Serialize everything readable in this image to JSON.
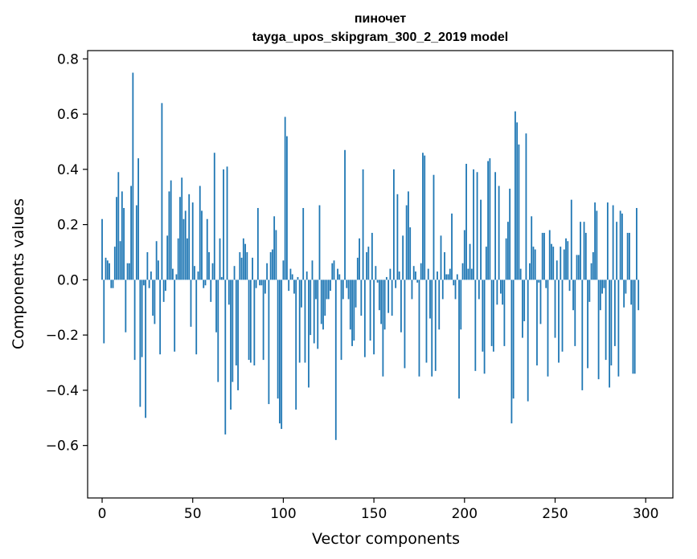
{
  "chart_data": {
    "type": "bar",
    "title_line1": "пиночет",
    "title_line2": "tayga_upos_skipgram_300_2_2019 model",
    "xlabel": "Vector components",
    "ylabel": "Components values",
    "xlim": [
      -8,
      315
    ],
    "ylim": [
      -0.79,
      0.83
    ],
    "xticks": [
      0,
      50,
      100,
      150,
      200,
      250,
      300
    ],
    "yticks": [
      -0.6,
      -0.4,
      -0.2,
      0.0,
      0.2,
      0.4,
      0.6,
      0.8
    ],
    "ytick_labels": [
      "−0.6",
      "−0.4",
      "−0.2",
      "0.0",
      "0.2",
      "0.4",
      "0.6",
      "0.8"
    ],
    "bar_color": "#1f77b4",
    "values": [
      0.22,
      -0.23,
      0.08,
      0.07,
      0.06,
      -0.03,
      -0.03,
      0.12,
      0.3,
      0.39,
      0.14,
      0.32,
      0.26,
      -0.19,
      0.06,
      0.06,
      0.34,
      0.75,
      -0.29,
      0.27,
      0.44,
      -0.46,
      -0.28,
      -0.02,
      -0.5,
      0.1,
      -0.03,
      0.03,
      -0.13,
      -0.16,
      0.14,
      0.07,
      -0.27,
      0.64,
      -0.08,
      -0.04,
      0.16,
      0.32,
      0.36,
      0.04,
      -0.26,
      0.02,
      0.15,
      0.3,
      0.37,
      0.22,
      0.25,
      0.15,
      0.31,
      -0.17,
      0.28,
      0.05,
      -0.27,
      0.03,
      0.34,
      0.25,
      -0.03,
      -0.02,
      0.22,
      0.1,
      -0.08,
      0.06,
      0.46,
      -0.19,
      -0.37,
      0.15,
      0.01,
      0.4,
      -0.56,
      0.41,
      -0.09,
      -0.47,
      -0.37,
      0.05,
      -0.31,
      -0.4,
      0.1,
      0.08,
      0.15,
      0.13,
      0.1,
      -0.29,
      -0.3,
      0.08,
      -0.31,
      -0.03,
      0.26,
      -0.02,
      -0.02,
      -0.29,
      -0.05,
      0.06,
      -0.45,
      0.1,
      0.11,
      0.23,
      0.18,
      -0.43,
      -0.52,
      -0.54,
      0.07,
      0.59,
      0.52,
      -0.04,
      0.04,
      0.02,
      -0.05,
      -0.47,
      0.01,
      -0.3,
      -0.1,
      0.26,
      -0.3,
      0.03,
      -0.39,
      -0.2,
      0.07,
      -0.23,
      -0.07,
      -0.25,
      0.27,
      -0.16,
      -0.18,
      -0.13,
      -0.07,
      -0.07,
      -0.04,
      0.06,
      0.07,
      -0.58,
      0.04,
      0.02,
      -0.29,
      -0.07,
      0.47,
      -0.03,
      -0.07,
      -0.18,
      -0.24,
      -0.22,
      -0.1,
      0.08,
      0.15,
      -0.13,
      0.4,
      -0.28,
      0.1,
      0.12,
      -0.22,
      0.17,
      -0.27,
      0.05,
      -0.01,
      -0.11,
      -0.16,
      -0.35,
      -0.18,
      0.01,
      -0.12,
      0.04,
      -0.13,
      0.4,
      -0.03,
      0.31,
      0.03,
      -0.19,
      0.16,
      -0.32,
      0.27,
      0.32,
      0.19,
      -0.07,
      0.05,
      0.03,
      -0.01,
      -0.35,
      0.06,
      0.46,
      0.45,
      -0.3,
      0.04,
      -0.14,
      -0.35,
      0.38,
      -0.33,
      0.03,
      -0.18,
      0.16,
      -0.07,
      0.1,
      0.02,
      0.02,
      0.04,
      0.24,
      -0.02,
      -0.07,
      0.02,
      -0.43,
      -0.18,
      0.06,
      0.18,
      0.42,
      0.04,
      0.13,
      0.04,
      0.4,
      -0.33,
      0.39,
      -0.07,
      0.29,
      -0.26,
      -0.34,
      0.12,
      0.43,
      0.44,
      -0.24,
      -0.26,
      0.39,
      -0.09,
      0.34,
      -0.05,
      -0.09,
      -0.24,
      0.15,
      0.21,
      0.33,
      -0.52,
      -0.43,
      0.61,
      0.57,
      0.49,
      0.04,
      -0.21,
      -0.15,
      0.53,
      -0.44,
      0.06,
      0.23,
      0.12,
      0.11,
      -0.31,
      -0.01,
      -0.16,
      0.17,
      0.17,
      -0.03,
      -0.35,
      0.18,
      0.13,
      0.12,
      -0.21,
      0.07,
      -0.3,
      0.12,
      -0.26,
      0.11,
      0.15,
      0.14,
      -0.04,
      0.29,
      -0.11,
      -0.24,
      0.09,
      0.09,
      0.21,
      -0.4,
      0.21,
      0.17,
      -0.32,
      -0.08,
      0.06,
      0.1,
      0.28,
      0.25,
      -0.36,
      -0.11,
      -0.05,
      -0.03,
      -0.29,
      0.28,
      -0.39,
      -0.31,
      0.27,
      -0.24,
      0.21,
      -0.35,
      0.25,
      0.24,
      -0.1,
      -0.05,
      0.17,
      0.17,
      -0.09,
      -0.34,
      -0.34,
      0.26,
      -0.11
    ]
  }
}
